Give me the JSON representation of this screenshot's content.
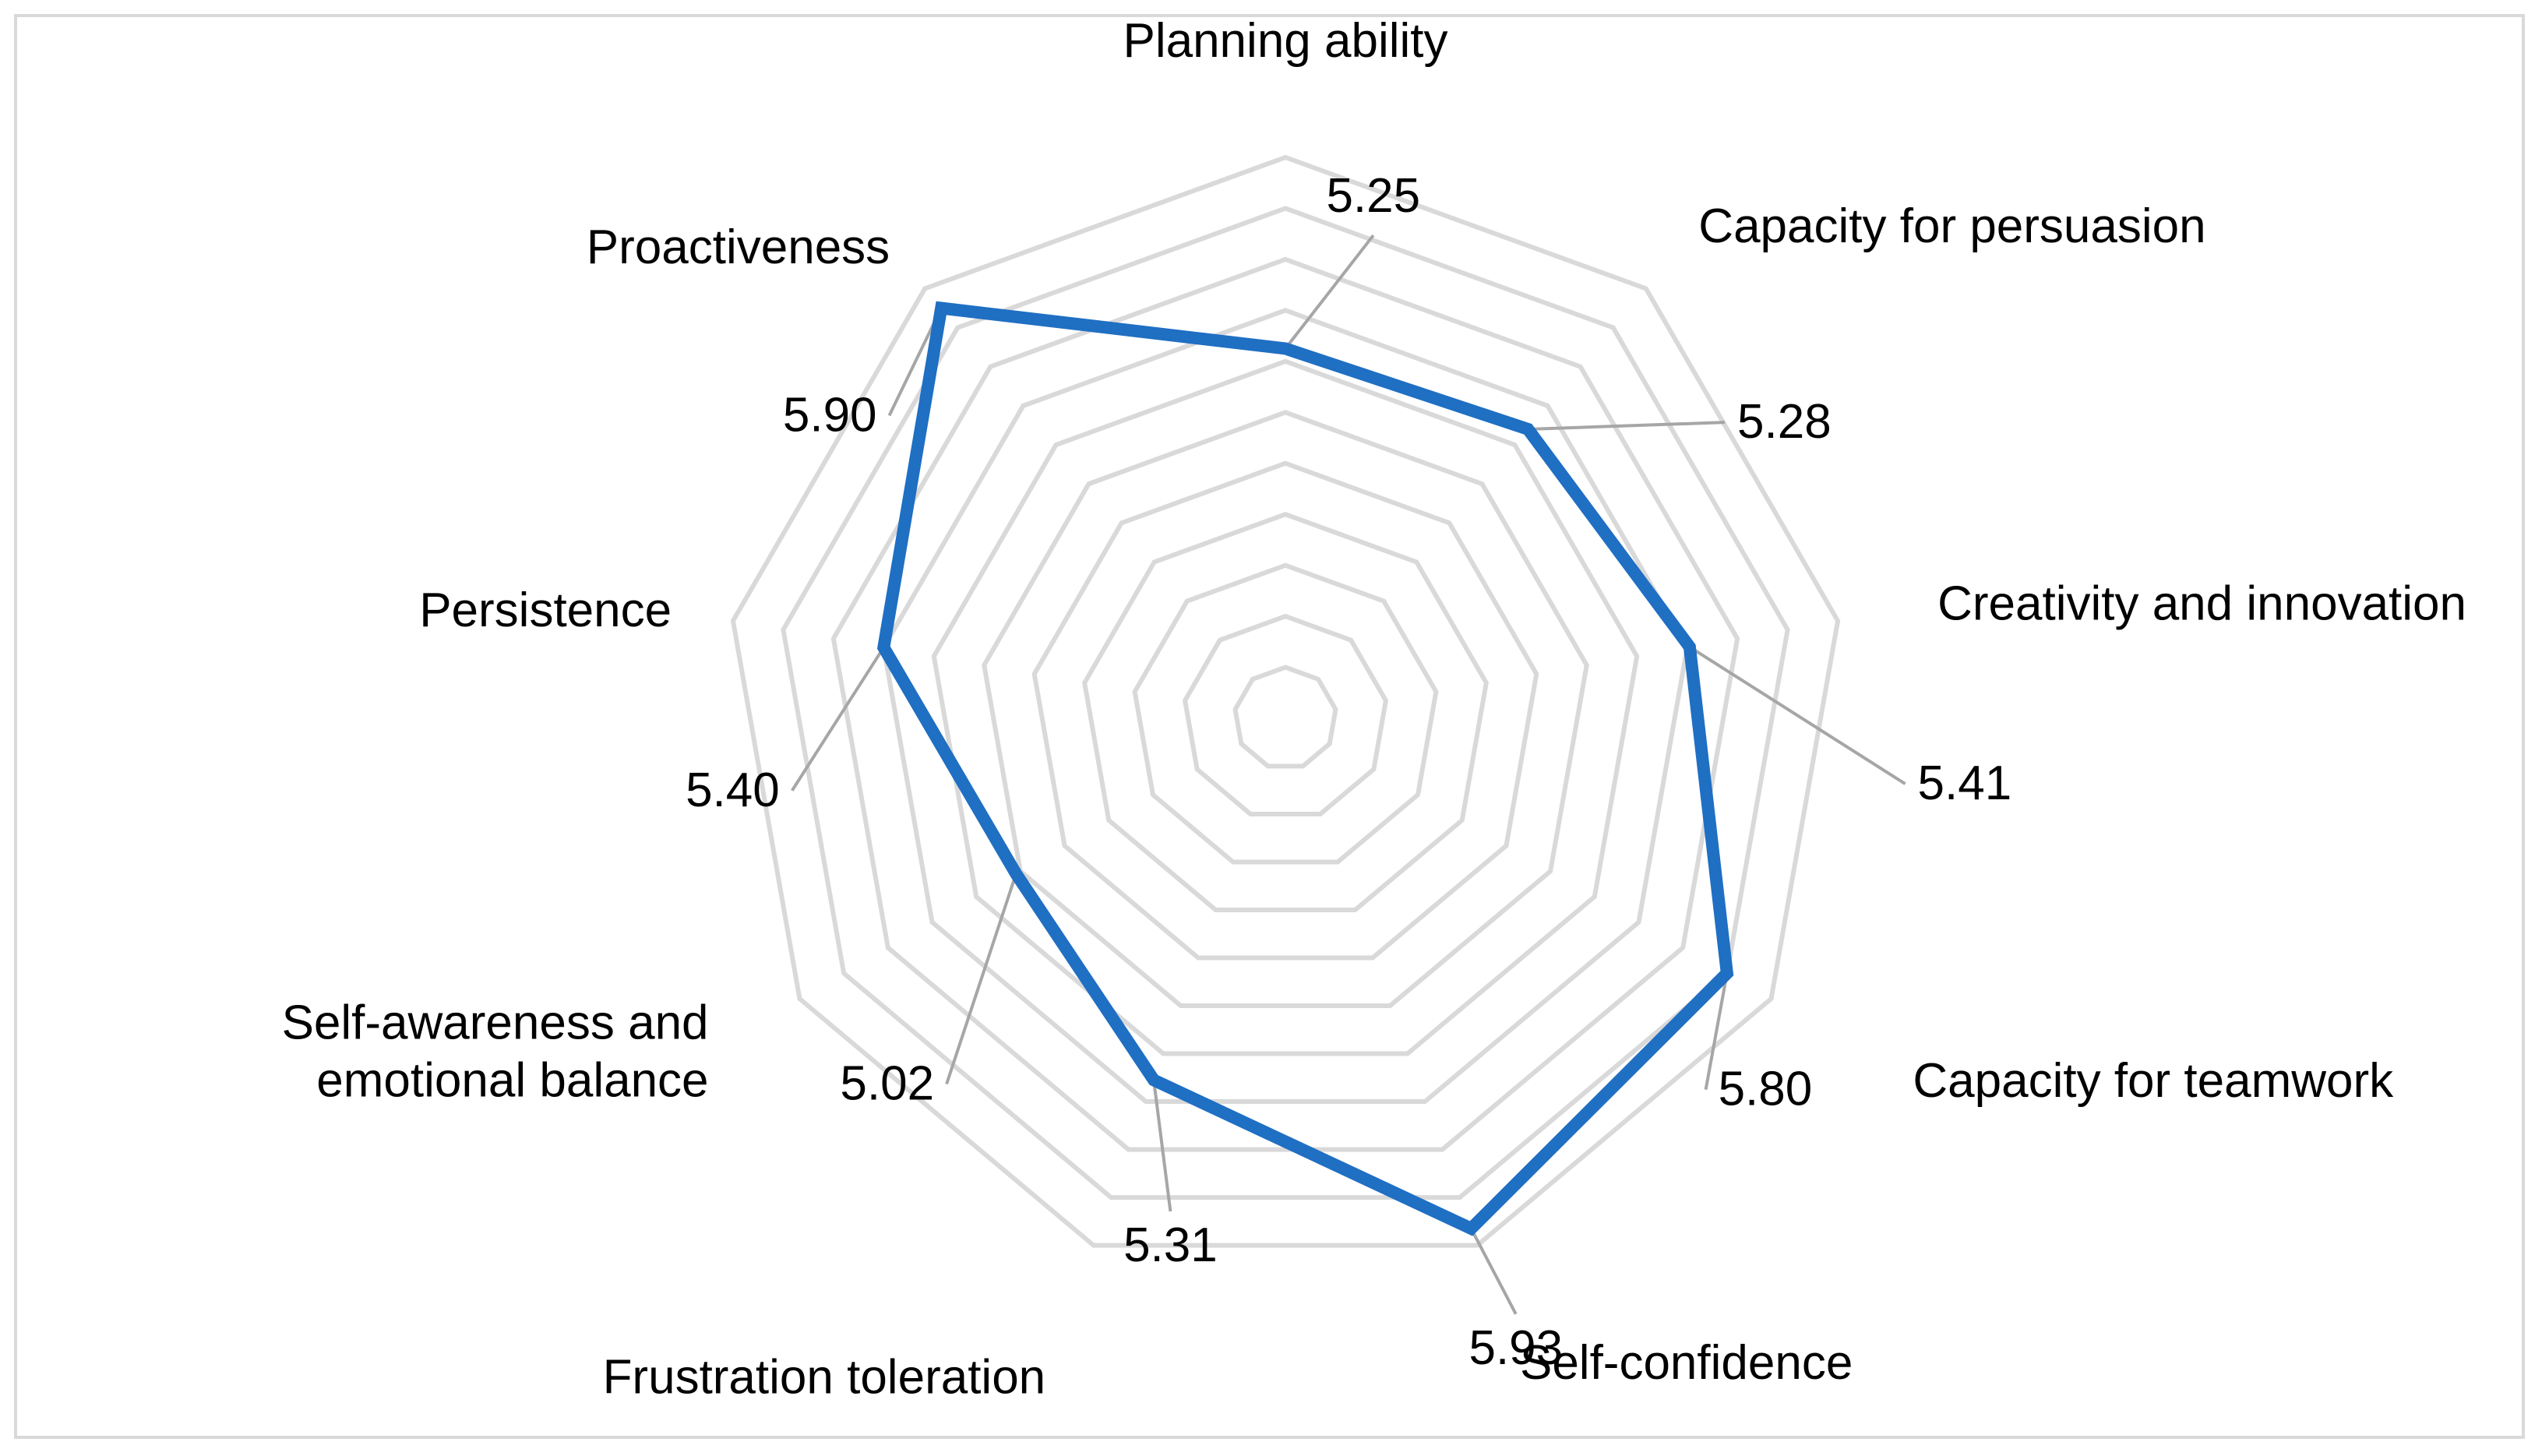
{
  "chart_data": {
    "type": "radar",
    "categories": [
      "Planning ability",
      "Capacity for persuasion",
      "Creativity and innovation",
      "Capacity for teamwork",
      "Self-confidence",
      "Frustration toleration",
      "Self-awareness and emotional balance",
      "Persistence",
      "Proactiveness"
    ],
    "category_lines": [
      [
        "Planning ability"
      ],
      [
        "Capacity for persuasion"
      ],
      [
        "Creativity and innovation"
      ],
      [
        "Capacity for teamwork"
      ],
      [
        "Self-confidence"
      ],
      [
        "Frustration toleration"
      ],
      [
        "Self-awareness and",
        "emotional balance"
      ],
      [
        "Persistence"
      ],
      [
        "Proactiveness"
      ]
    ],
    "values": [
      5.25,
      5.28,
      5.41,
      5.8,
      5.93,
      5.31,
      5.02,
      5.4,
      5.9
    ],
    "value_labels": [
      "5.25",
      "5.28",
      "5.41",
      "5.80",
      "5.93",
      "5.31",
      "5.02",
      "5.40",
      "5.90"
    ],
    "rlim": [
      3.8,
      6.0
    ],
    "grid": true,
    "grid_rings": 11,
    "legend": "none",
    "colors": {
      "series": "#1f6fc3",
      "grid": "#d9d9d9",
      "leader": "#a6a6a6",
      "frame": "#d9d9d9"
    }
  }
}
